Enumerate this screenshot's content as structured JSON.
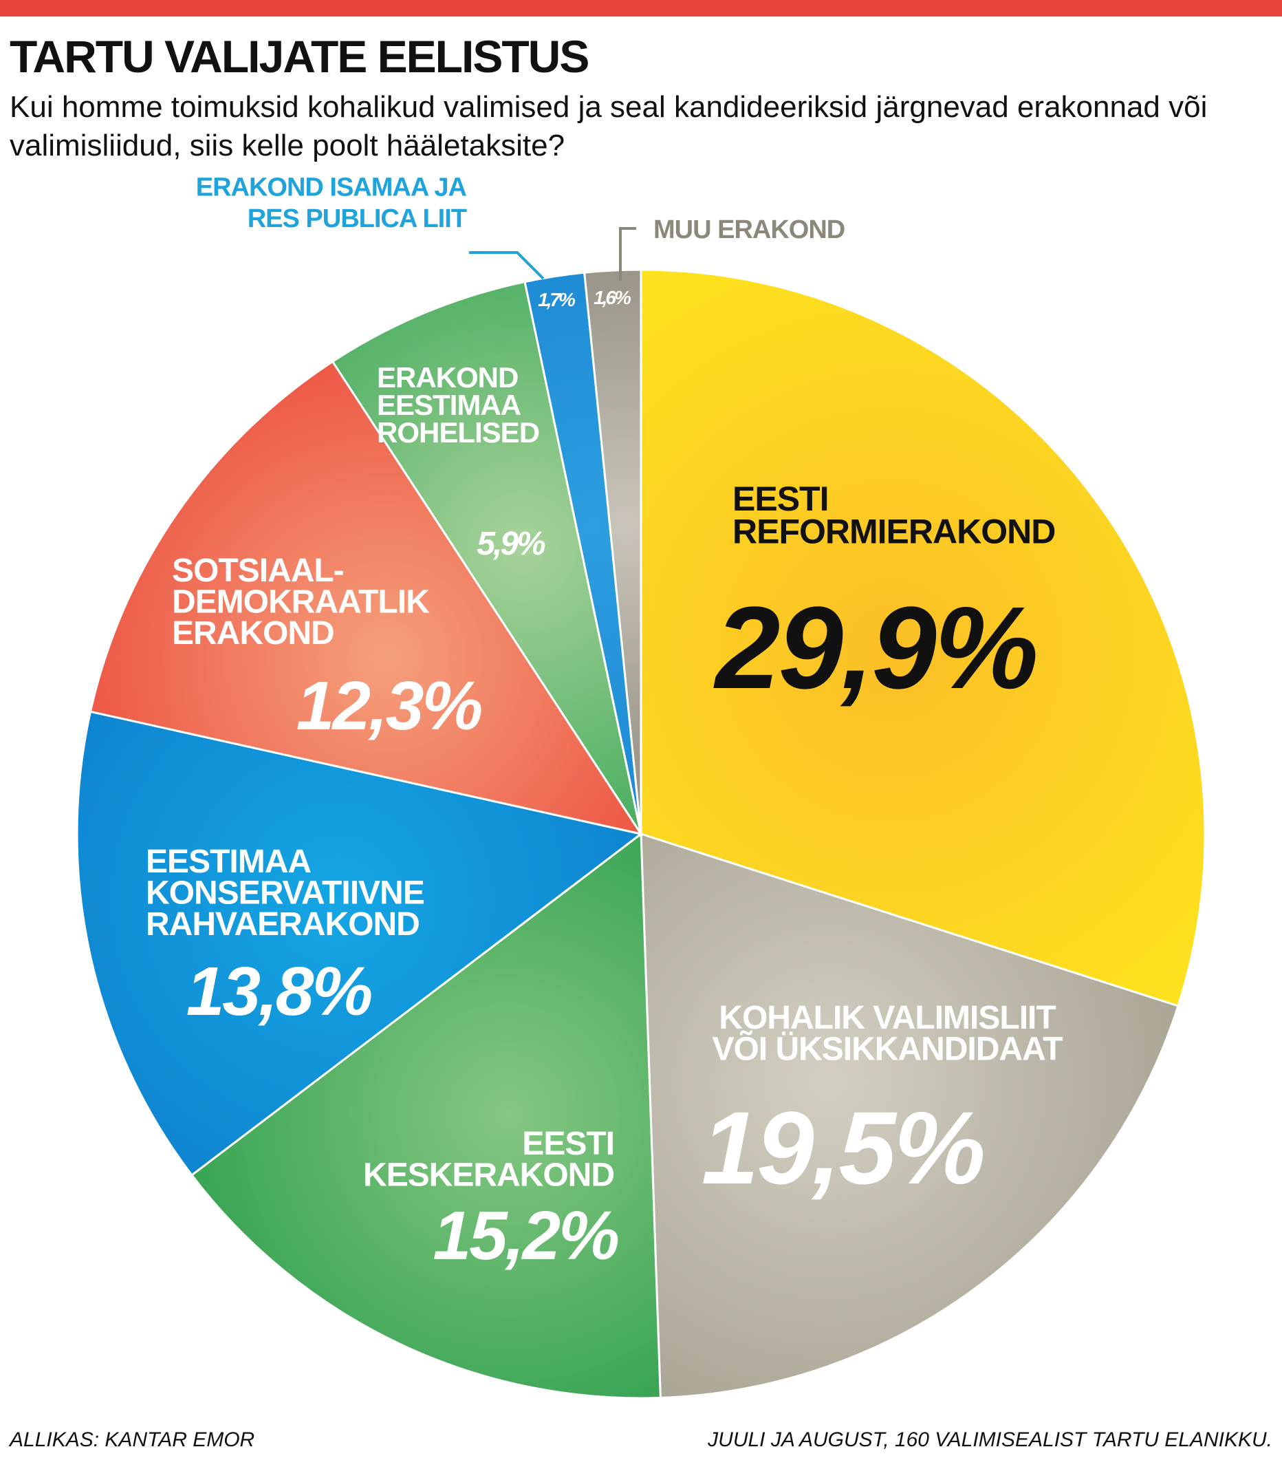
{
  "header": {
    "title": "TARTU VALIJATE EELISTUS",
    "subtitle": "Kui homme toimuksid kohalikud valimised ja seal kandideeriksid järgnevad erakonnad või valimisliidud, siis kelle poolt hääletaksite?"
  },
  "footer": {
    "source": "ALLIKAS: KANTAR EMOR",
    "note": "JUULI JA AUGUST, 160 VALIMISEALIST TARTU ELANIKKU."
  },
  "chart_data": {
    "type": "pie",
    "title": "TARTU VALIJATE EELISTUS",
    "start": "12 o'clock",
    "direction": "clockwise",
    "slices": [
      {
        "key": "reform",
        "label_lines": [
          "EESTI",
          "REFORMIERAKOND"
        ],
        "value": 29.9,
        "value_label": "29,9%",
        "color": "#fde11e",
        "color_light": "#fbbf26"
      },
      {
        "key": "kohalik",
        "label_lines": [
          "KOHALIK VALIMISLIIT",
          "VÕI ÜKSIKKANDIDAAT"
        ],
        "value": 19.5,
        "value_label": "19,5%",
        "color": "#a39e8d",
        "color_light": "#d3cfc2"
      },
      {
        "key": "kesk",
        "label_lines": [
          "EESTI",
          "KESKERAKOND"
        ],
        "value": 15.2,
        "value_label": "15,2%",
        "color": "#1f9a45",
        "color_light": "#86c782"
      },
      {
        "key": "ekre",
        "label_lines": [
          "EESTIMAA",
          "KONSERVATIIVNE",
          "RAHVAERAKOND"
        ],
        "value": 13.8,
        "value_label": "13,8%",
        "color": "#0b78c9",
        "color_light": "#15a6e4"
      },
      {
        "key": "sde",
        "label_lines": [
          "SOTSIAAL-",
          "DEMOKRAATLIK",
          "ERAKOND"
        ],
        "value": 12.3,
        "value_label": "12,3%",
        "color": "#ea3b30",
        "color_light": "#f5a07c"
      },
      {
        "key": "rohelised",
        "label_lines": [
          "ERAKOND",
          "EESTIMAA",
          "ROHELISED"
        ],
        "value": 5.9,
        "value_label": "5,9%",
        "color": "#24a04a",
        "color_light": "#a8d29a"
      },
      {
        "key": "irl",
        "label_lines": [
          "ERAKOND ISAMAA JA",
          "RES PUBLICA LIIT"
        ],
        "value": 1.7,
        "value_label": "1,7%",
        "color": "#1581cf",
        "color_light": "#2d9ee0",
        "callout_color": "#1ea3dd"
      },
      {
        "key": "muu",
        "label_lines": [
          "MUU ERAKOND"
        ],
        "value": 1.6,
        "value_label": "1,6%",
        "color": "#7a7568",
        "color_light": "#c9c5ba",
        "callout_color": "#8c877b"
      }
    ]
  }
}
